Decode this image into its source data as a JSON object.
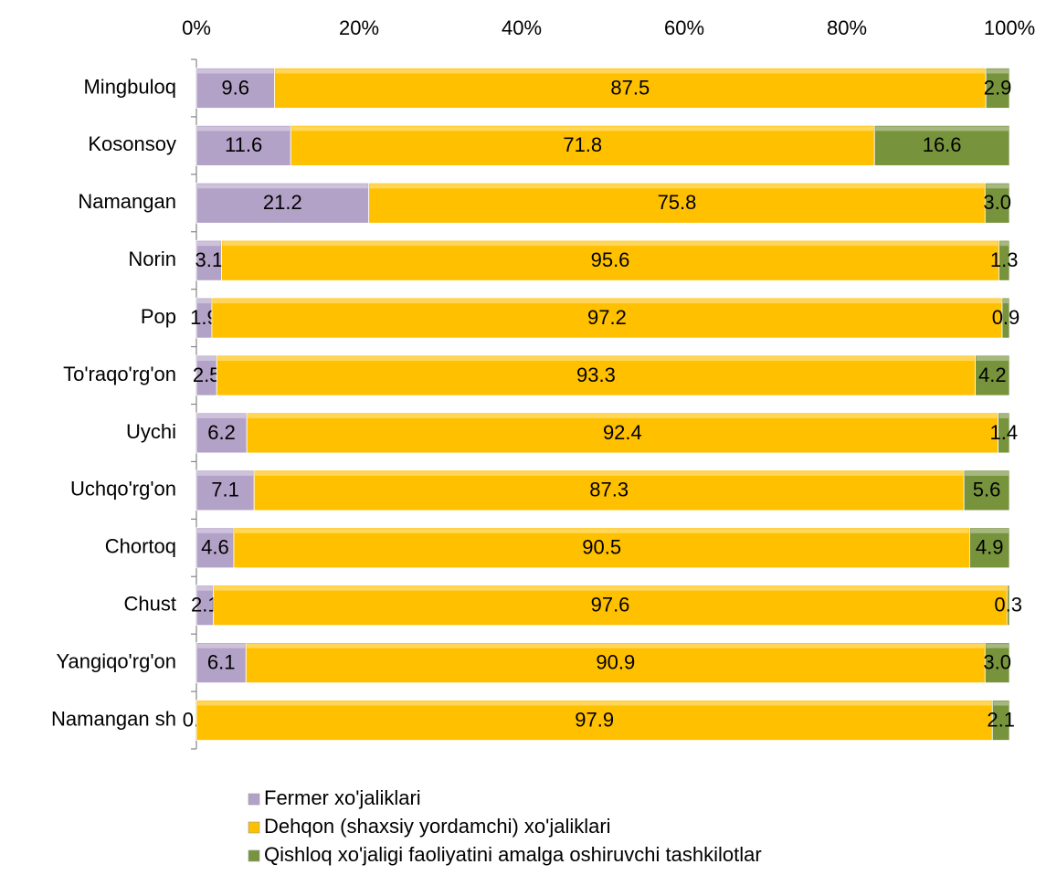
{
  "chart_data": {
    "type": "bar",
    "orientation": "horizontal",
    "stacked": true,
    "categories": [
      "Mingbuloq",
      "Kosonsoy",
      "Namangan",
      "Norin",
      "Pop",
      "To'raqo'rg'on",
      "Uychi",
      "Uchqo'rg'on",
      "Chortoq",
      "Chust",
      "Yangiqo'rg'on",
      "Namangan sh"
    ],
    "series": [
      {
        "name": "Fermer xo'jaliklari",
        "color": "#b3a2c7",
        "values": [
          9.6,
          11.6,
          21.2,
          3.1,
          1.9,
          2.5,
          6.2,
          7.1,
          4.6,
          2.1,
          6.1,
          0
        ],
        "value_labels": [
          "9.6",
          "11.6",
          "21.2",
          "3.1",
          "1.9",
          "2.5",
          "6.2",
          "7.1",
          "4.6",
          "2.1",
          "6.1",
          "0.0"
        ]
      },
      {
        "name": "Dehqon (shaxsiy yordamchi) xo'jaliklari",
        "color": "#ffc000",
        "values": [
          87.5,
          71.8,
          75.8,
          95.6,
          97.2,
          93.3,
          92.4,
          87.3,
          90.5,
          97.6,
          90.9,
          97.9
        ],
        "value_labels": [
          "87.5",
          "71.8",
          "75.8",
          "95.6",
          "97.2",
          "93.3",
          "92.4",
          "87.3",
          "90.5",
          "97.6",
          "90.9",
          "97.9"
        ]
      },
      {
        "name": "Qishloq xo'jaligi faoliyatini amalga oshiruvchi tashkilotlar",
        "color": "#77933c",
        "values": [
          2.9,
          16.6,
          3,
          1.3,
          0.9,
          4.2,
          1.4,
          5.6,
          4.9,
          0.3,
          3,
          2.1
        ],
        "value_labels": [
          "2.9",
          "16.6",
          "3.0",
          "1.3",
          "0.9",
          "4.2",
          "1.4",
          "5.6",
          "4.9",
          "0.3",
          "3.0",
          "2.1"
        ]
      }
    ],
    "xlim": [
      0,
      100
    ],
    "xticks": [
      {
        "value": 0,
        "label": "0%"
      },
      {
        "value": 20,
        "label": "20%"
      },
      {
        "value": 40,
        "label": "40%"
      },
      {
        "value": 60,
        "label": "60%"
      },
      {
        "value": 80,
        "label": "80%"
      },
      {
        "value": 100,
        "label": "100%"
      }
    ],
    "legend": "bottom"
  }
}
